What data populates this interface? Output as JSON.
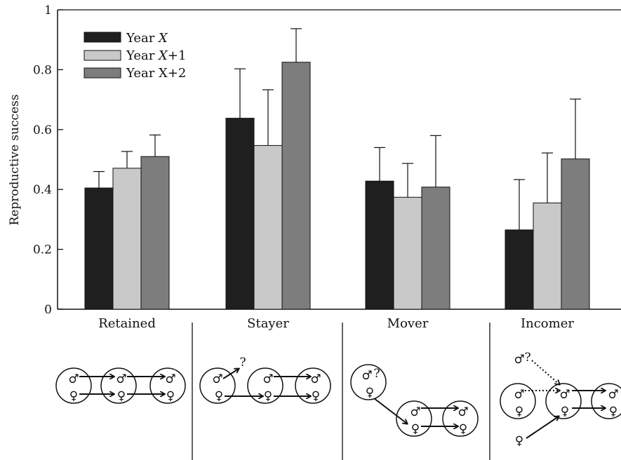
{
  "chart_data": {
    "type": "bar",
    "ylabel": "Reproductive success",
    "ylim": [
      0,
      1
    ],
    "yticks": [
      "0",
      "0.2",
      "0.4",
      "0.6",
      "0.8",
      "1"
    ],
    "categories": [
      "Retained",
      "Stayer",
      "Mover",
      "Incomer"
    ],
    "series": [
      {
        "name": "Year X",
        "name_base": "Year ",
        "name_var": "X",
        "name_suffix": "",
        "color": "#1f1f1f",
        "values": [
          0.405,
          0.638,
          0.428,
          0.265
        ],
        "errors": [
          0.055,
          0.165,
          0.112,
          0.168
        ]
      },
      {
        "name": "Year X+1",
        "name_base": "Year ",
        "name_var": "X",
        "name_suffix": "+1",
        "color": "#c9c9c9",
        "values": [
          0.471,
          0.547,
          0.374,
          0.355
        ],
        "errors": [
          0.056,
          0.186,
          0.113,
          0.167
        ]
      },
      {
        "name": "Year X+2",
        "name_base": "Year X+2",
        "name_var": "",
        "name_suffix": "",
        "color": "#7d7d7d",
        "values": [
          0.51,
          0.825,
          0.408,
          0.502
        ],
        "errors": [
          0.072,
          0.112,
          0.172,
          0.2
        ]
      }
    ],
    "legend_position": "top-left",
    "grid": false
  },
  "diagram": {
    "male_symbol": "♂",
    "female_symbol": "♀",
    "unknown_mark": "?"
  }
}
